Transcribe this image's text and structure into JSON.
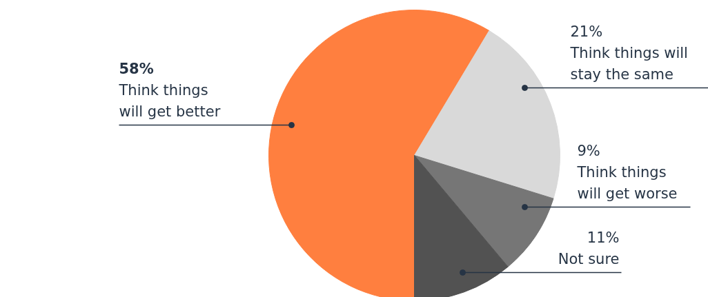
{
  "chart_data": {
    "type": "pie",
    "categories": [
      "Think things\nwill get better",
      "Think things will\nstay the same",
      "Think things\nwill get worse",
      "Not sure"
    ],
    "values": [
      58,
      21,
      9,
      11
    ],
    "colors": [
      "#ff7f3f",
      "#d9d9d9",
      "#767676",
      "#525252"
    ],
    "value_labels": [
      "58%",
      "21%",
      "9%",
      "11%"
    ]
  }
}
